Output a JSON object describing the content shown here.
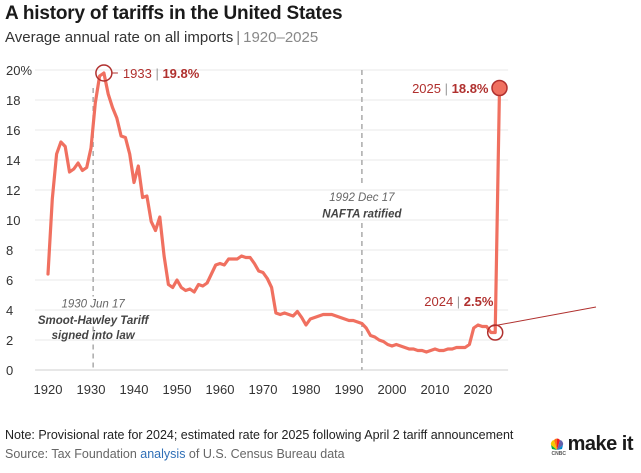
{
  "header": {
    "title": "A history of tariffs in the United States",
    "subtitle_main": "Average annual rate on all imports",
    "subtitle_sep": "|",
    "subtitle_range": "1920–2025"
  },
  "footer": {
    "note": "Note: Provisional rate for 2024; estimated rate for 2025 following April 2 tariff announcement",
    "source_prefix": "Source: Tax Foundation ",
    "source_link": "analysis",
    "source_suffix": " of U.S. Census Bureau data",
    "logo_text": "make it",
    "logo_small": "CNBC"
  },
  "colors": {
    "line": "#f07060",
    "accent": "#b0302e",
    "grid": "#e8e8e8",
    "event_line": "#aaaaaa"
  },
  "chart_data": {
    "type": "line",
    "title": "A history of tariffs in the United States",
    "subtitle": "Average annual rate on all imports | 1920–2025",
    "xlim": [
      1917,
      2027
    ],
    "ylim": [
      0,
      20
    ],
    "x_ticks": [
      1920,
      1930,
      1940,
      1950,
      1960,
      1970,
      1980,
      1990,
      2000,
      2010,
      2020
    ],
    "y_ticks": [
      0,
      2,
      4,
      6,
      8,
      10,
      12,
      14,
      16,
      18,
      20
    ],
    "y_tick_labels": [
      "0",
      "2",
      "4",
      "6",
      "8",
      "10",
      "12",
      "14",
      "16",
      "18",
      "20%"
    ],
    "grid": true,
    "series": [
      {
        "x": [
          1920,
          1921,
          1922,
          1923,
          1924,
          1925,
          1926,
          1927,
          1928,
          1929,
          1930,
          1931,
          1932,
          1933,
          1934,
          1935,
          1936,
          1937,
          1938,
          1939,
          1940,
          1941,
          1942,
          1943,
          1944,
          1945,
          1946,
          1947,
          1948,
          1949,
          1950,
          1951,
          1952,
          1953,
          1954,
          1955,
          1956,
          1957,
          1958,
          1959,
          1960,
          1961,
          1962,
          1963,
          1964,
          1965,
          1966,
          1967,
          1968,
          1969,
          1970,
          1971,
          1972,
          1973,
          1974,
          1975,
          1976,
          1977,
          1978,
          1979,
          1980,
          1981,
          1982,
          1983,
          1984,
          1985,
          1986,
          1987,
          1988,
          1989,
          1990,
          1991,
          1992,
          1993,
          1994,
          1995,
          1996,
          1997,
          1998,
          1999,
          2000,
          2001,
          2002,
          2003,
          2004,
          2005,
          2006,
          2007,
          2008,
          2009,
          2010,
          2011,
          2012,
          2013,
          2014,
          2015,
          2016,
          2017,
          2018,
          2019,
          2020,
          2021,
          2022,
          2023,
          2024,
          2025
        ],
        "y": [
          6.4,
          11.4,
          14.4,
          15.2,
          14.9,
          13.2,
          13.4,
          13.8,
          13.3,
          13.5,
          14.8,
          17.8,
          19.6,
          19.8,
          18.4,
          17.5,
          16.8,
          15.6,
          15.5,
          14.4,
          12.5,
          13.6,
          11.5,
          11.6,
          9.9,
          9.3,
          10.2,
          7.6,
          5.7,
          5.5,
          6.0,
          5.5,
          5.3,
          5.4,
          5.2,
          5.7,
          5.6,
          5.8,
          6.4,
          7.0,
          7.1,
          7.0,
          7.4,
          7.4,
          7.4,
          7.6,
          7.5,
          7.5,
          7.1,
          6.6,
          6.5,
          6.1,
          5.5,
          3.8,
          3.7,
          3.8,
          3.7,
          3.6,
          3.9,
          3.5,
          3.0,
          3.4,
          3.5,
          3.6,
          3.7,
          3.7,
          3.7,
          3.6,
          3.5,
          3.4,
          3.3,
          3.3,
          3.2,
          3.1,
          2.8,
          2.3,
          2.2,
          2.0,
          1.9,
          1.7,
          1.6,
          1.7,
          1.6,
          1.5,
          1.4,
          1.4,
          1.3,
          1.3,
          1.2,
          1.3,
          1.4,
          1.3,
          1.3,
          1.4,
          1.4,
          1.5,
          1.5,
          1.5,
          1.7,
          2.8,
          3.0,
          2.9,
          2.9,
          2.5,
          2.5,
          18.8
        ]
      }
    ],
    "events": [
      {
        "year": 1930.5,
        "date": "1930 Jun 17",
        "label_line1": "Smoot-Hawley Tariff",
        "label_line2": "signed into law"
      },
      {
        "year": 1993,
        "date": "1992 Dec 17",
        "label_line1": "NAFTA ratified",
        "label_line2": ""
      }
    ],
    "annotations": [
      {
        "x": 1933,
        "y": 19.8,
        "year": "1933",
        "sep": "|",
        "value": "19.8%"
      },
      {
        "x": 2025,
        "y": 18.8,
        "year": "2025",
        "sep": "|",
        "value": "18.8%"
      },
      {
        "x": 2024,
        "y": 2.5,
        "year": "2024",
        "sep": "|",
        "value": "2.5%"
      }
    ]
  }
}
